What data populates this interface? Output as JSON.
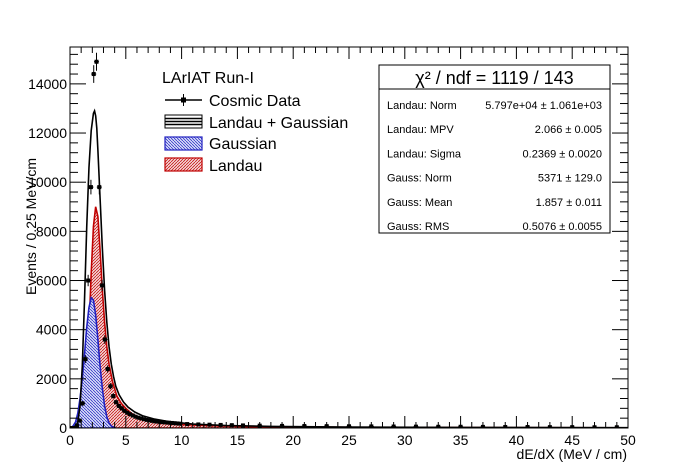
{
  "chart_data": {
    "type": "histogram",
    "title": "",
    "xlabel": "dE/dX (MeV / cm)",
    "ylabel": "Events / 0.25 MeV/cm",
    "xlim": [
      0,
      50
    ],
    "ylim": [
      0,
      15500
    ],
    "x_ticks": [
      0,
      5,
      10,
      15,
      20,
      25,
      30,
      35,
      40,
      45,
      50
    ],
    "y_ticks": [
      0,
      2000,
      4000,
      6000,
      8000,
      10000,
      12000,
      14000
    ],
    "legend": {
      "title": "LArIAT Run-I",
      "placement": "top-center",
      "entries": [
        "Cosmic Data",
        "Landau + Gaussian",
        "Gaussian",
        "Landau"
      ]
    },
    "series": [
      {
        "name": "Cosmic Data",
        "style": "points",
        "color": "#000000",
        "x": [
          0.125,
          0.375,
          0.625,
          0.875,
          1.125,
          1.375,
          1.625,
          1.875,
          2.125,
          2.375,
          2.625,
          2.875,
          3.125,
          3.375,
          3.625,
          3.875,
          4.125,
          4.375,
          4.625,
          4.875,
          5.125,
          5.375,
          5.625,
          5.875,
          6.125,
          6.375,
          6.625,
          6.875,
          7.125,
          7.375,
          7.625,
          7.875,
          8.125,
          8.375,
          8.625,
          8.875,
          9.125,
          9.375,
          9.625,
          9.875,
          10.5,
          11.5,
          12.5,
          13.5,
          14.5,
          15.5,
          17,
          19,
          21,
          23,
          25,
          27,
          29,
          31,
          33,
          35,
          37,
          39,
          41,
          43,
          45,
          47,
          49
        ],
        "y": [
          0,
          0,
          100,
          300,
          1000,
          2800,
          6000,
          9800,
          14400,
          14900,
          9800,
          5800,
          3600,
          2400,
          1700,
          1300,
          1050,
          900,
          800,
          700,
          620,
          560,
          510,
          460,
          420,
          390,
          360,
          330,
          310,
          290,
          270,
          260,
          245,
          235,
          225,
          215,
          205,
          195,
          185,
          175,
          160,
          145,
          135,
          125,
          115,
          105,
          95,
          85,
          80,
          75,
          70,
          65,
          60,
          55,
          50,
          50,
          45,
          40,
          40,
          35,
          35,
          30,
          30
        ]
      },
      {
        "name": "Landau + Gaussian",
        "style": "line",
        "color": "#000000",
        "x": [
          0.1,
          0.3,
          0.5,
          0.7,
          0.9,
          1.1,
          1.3,
          1.5,
          1.7,
          1.9,
          2.1,
          2.2,
          2.3,
          2.4,
          2.5,
          2.7,
          2.9,
          3.1,
          3.3,
          3.5,
          3.7,
          3.9,
          4.1,
          4.4,
          4.8,
          5.2,
          5.8,
          6.5,
          7.5,
          9,
          11,
          14,
          18,
          25,
          35,
          50
        ],
        "y": [
          0,
          0,
          50,
          250,
          900,
          2500,
          5200,
          8200,
          10600,
          12100,
          12800,
          12900,
          12700,
          12200,
          11300,
          9300,
          7300,
          5600,
          4300,
          3300,
          2600,
          2100,
          1700,
          1350,
          1050,
          850,
          650,
          500,
          370,
          250,
          160,
          100,
          65,
          40,
          25,
          15
        ]
      },
      {
        "name": "Gaussian",
        "style": "hatched-fill",
        "color": "#1f1fd6",
        "x": [
          0.1,
          0.3,
          0.5,
          0.7,
          0.9,
          1.1,
          1.3,
          1.5,
          1.7,
          1.9,
          2.1,
          2.3,
          2.5,
          2.7,
          2.9,
          3.1,
          3.3,
          3.5,
          3.7,
          3.9,
          4.1
        ],
        "y": [
          0,
          100,
          250,
          600,
          1200,
          2000,
          3000,
          4100,
          4900,
          5300,
          5200,
          4600,
          3600,
          2500,
          1600,
          900,
          450,
          200,
          80,
          30,
          0
        ]
      },
      {
        "name": "Landau",
        "style": "hatched-fill",
        "color": "#cc1f1f",
        "x": [
          0.9,
          1.1,
          1.3,
          1.5,
          1.7,
          1.9,
          2.1,
          2.3,
          2.5,
          2.7,
          2.9,
          3.1,
          3.3,
          3.5,
          3.8,
          4.2,
          4.6,
          5.0,
          5.5,
          6.0,
          7.0,
          8.0,
          10,
          13,
          17,
          25,
          35,
          50
        ],
        "y": [
          0,
          200,
          800,
          2000,
          4000,
          6300,
          8200,
          9000,
          8600,
          7200,
          5600,
          4300,
          3300,
          2600,
          1900,
          1300,
          1000,
          800,
          600,
          480,
          330,
          240,
          140,
          90,
          55,
          30,
          18,
          10
        ]
      }
    ],
    "fit_stats": {
      "header": "χ² / ndf =  1119 / 143",
      "rows": [
        {
          "label": "Landau: Norm",
          "value": "5.797e+04 ± 1.061e+03"
        },
        {
          "label": "Landau: MPV",
          "value": "2.066 ± 0.005"
        },
        {
          "label": "Landau: Sigma",
          "value": "0.2369 ± 0.0020"
        },
        {
          "label": "Gauss: Norm",
          "value": "5371 ± 129.0"
        },
        {
          "label": "Gauss: Mean",
          "value": "1.857 ± 0.011"
        },
        {
          "label": "Gauss: RMS",
          "value": "0.5076 ± 0.0055"
        }
      ]
    }
  }
}
